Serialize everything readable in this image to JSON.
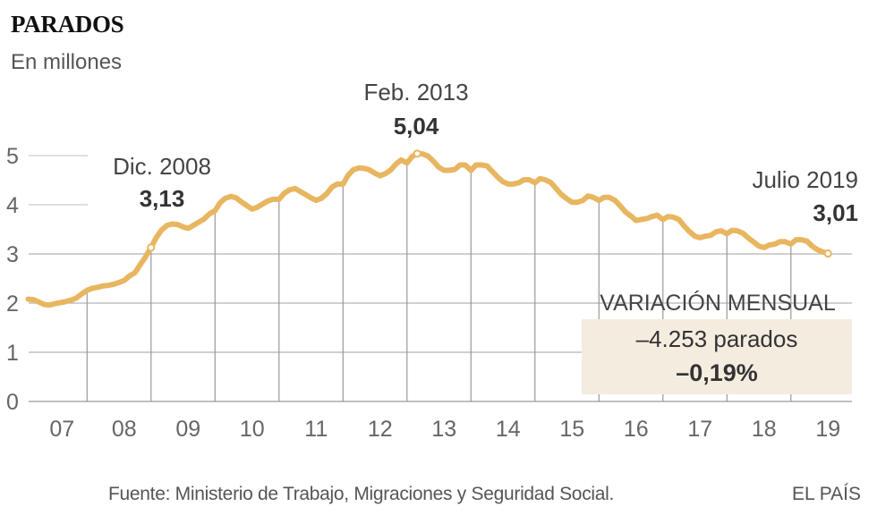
{
  "header": {
    "title": "PARADOS",
    "subtitle": "En millones"
  },
  "footer": {
    "source": "Fuente: Ministerio de Trabajo, Migraciones y Seguridad Social.",
    "brand": "EL PAÍS"
  },
  "colors": {
    "line": "#e8b660",
    "grid": "#b3b3b3",
    "text": "#555555",
    "strong_text": "#333333",
    "box_bg": "#f5ece0"
  },
  "chart_data": {
    "type": "line",
    "title": "PARADOS",
    "subtitle": "En millones",
    "xlabel": "",
    "ylabel": "",
    "ylim": [
      0,
      5
    ],
    "yticks": [
      "0",
      "1",
      "2",
      "3",
      "4",
      "5"
    ],
    "xticks": [
      "07",
      "08",
      "09",
      "10",
      "11",
      "12",
      "13",
      "14",
      "15",
      "16",
      "17",
      "18",
      "19"
    ],
    "x_start_year": 2007,
    "series": [
      {
        "name": "Parados",
        "x": [
          2007.0,
          2007.08,
          2007.17,
          2007.25,
          2007.33,
          2007.42,
          2007.5,
          2007.58,
          2007.67,
          2007.75,
          2007.83,
          2007.92,
          2008.0,
          2008.08,
          2008.17,
          2008.25,
          2008.33,
          2008.42,
          2008.5,
          2008.58,
          2008.67,
          2008.75,
          2008.83,
          2008.92,
          2009.0,
          2009.08,
          2009.17,
          2009.25,
          2009.33,
          2009.42,
          2009.5,
          2009.58,
          2009.67,
          2009.75,
          2009.83,
          2009.92,
          2010.0,
          2010.08,
          2010.17,
          2010.25,
          2010.33,
          2010.42,
          2010.5,
          2010.58,
          2010.67,
          2010.75,
          2010.83,
          2010.92,
          2011.0,
          2011.08,
          2011.17,
          2011.25,
          2011.33,
          2011.42,
          2011.5,
          2011.58,
          2011.67,
          2011.75,
          2011.83,
          2011.92,
          2012.0,
          2012.08,
          2012.17,
          2012.25,
          2012.33,
          2012.42,
          2012.5,
          2012.58,
          2012.67,
          2012.75,
          2012.83,
          2012.92,
          2013.0,
          2013.08,
          2013.17,
          2013.25,
          2013.33,
          2013.42,
          2013.5,
          2013.58,
          2013.67,
          2013.75,
          2013.83,
          2013.92,
          2014.0,
          2014.08,
          2014.17,
          2014.25,
          2014.33,
          2014.42,
          2014.5,
          2014.58,
          2014.67,
          2014.75,
          2014.83,
          2014.92,
          2015.0,
          2015.08,
          2015.17,
          2015.25,
          2015.33,
          2015.42,
          2015.5,
          2015.58,
          2015.67,
          2015.75,
          2015.83,
          2015.92,
          2016.0,
          2016.08,
          2016.17,
          2016.25,
          2016.33,
          2016.42,
          2016.5,
          2016.58,
          2016.67,
          2016.75,
          2016.83,
          2016.92,
          2017.0,
          2017.08,
          2017.17,
          2017.25,
          2017.33,
          2017.42,
          2017.5,
          2017.58,
          2017.67,
          2017.75,
          2017.83,
          2017.92,
          2018.0,
          2018.08,
          2018.17,
          2018.25,
          2018.33,
          2018.42,
          2018.5,
          2018.58,
          2018.67,
          2018.75,
          2018.83,
          2018.92,
          2019.0,
          2019.08,
          2019.17,
          2019.25,
          2019.33,
          2019.42,
          2019.5
        ],
        "values": [
          2.08,
          2.07,
          2.02,
          1.97,
          1.96,
          1.99,
          2.01,
          2.03,
          2.06,
          2.1,
          2.18,
          2.26,
          2.3,
          2.32,
          2.35,
          2.36,
          2.38,
          2.42,
          2.46,
          2.55,
          2.62,
          2.78,
          2.93,
          3.13,
          3.33,
          3.48,
          3.58,
          3.61,
          3.6,
          3.55,
          3.52,
          3.58,
          3.65,
          3.71,
          3.81,
          3.88,
          4.04,
          4.13,
          4.17,
          4.14,
          4.06,
          3.98,
          3.91,
          3.95,
          4.02,
          4.08,
          4.11,
          4.11,
          4.23,
          4.3,
          4.33,
          4.27,
          4.21,
          4.14,
          4.09,
          4.13,
          4.23,
          4.36,
          4.42,
          4.42,
          4.6,
          4.71,
          4.75,
          4.74,
          4.71,
          4.64,
          4.59,
          4.63,
          4.71,
          4.83,
          4.91,
          4.85,
          4.98,
          5.04,
          5.03,
          4.99,
          4.89,
          4.76,
          4.7,
          4.7,
          4.72,
          4.81,
          4.81,
          4.7,
          4.81,
          4.81,
          4.79,
          4.68,
          4.57,
          4.47,
          4.42,
          4.42,
          4.45,
          4.51,
          4.51,
          4.45,
          4.53,
          4.51,
          4.45,
          4.33,
          4.21,
          4.12,
          4.05,
          4.05,
          4.09,
          4.18,
          4.15,
          4.09,
          4.15,
          4.15,
          4.09,
          3.98,
          3.86,
          3.77,
          3.68,
          3.7,
          3.72,
          3.76,
          3.79,
          3.7,
          3.76,
          3.75,
          3.7,
          3.57,
          3.46,
          3.36,
          3.33,
          3.36,
          3.38,
          3.45,
          3.47,
          3.41,
          3.48,
          3.47,
          3.42,
          3.33,
          3.25,
          3.16,
          3.13,
          3.18,
          3.2,
          3.25,
          3.25,
          3.2,
          3.29,
          3.29,
          3.26,
          3.16,
          3.09,
          3.04,
          3.01
        ]
      }
    ],
    "annotations": [
      {
        "label": "Dic. 2008",
        "value_label": "3,13",
        "x": 2008.92,
        "y": 3.13
      },
      {
        "label": "Feb. 2013",
        "value_label": "5,04",
        "x": 2013.08,
        "y": 5.04
      },
      {
        "label": "Julio 2019",
        "value_label": "3,01",
        "x": 2019.5,
        "y": 3.01
      }
    ],
    "callout": {
      "heading": "VARIACIÓN MENSUAL",
      "line1": "–4.253 parados",
      "line2": "–0,19%"
    },
    "grid": true
  }
}
